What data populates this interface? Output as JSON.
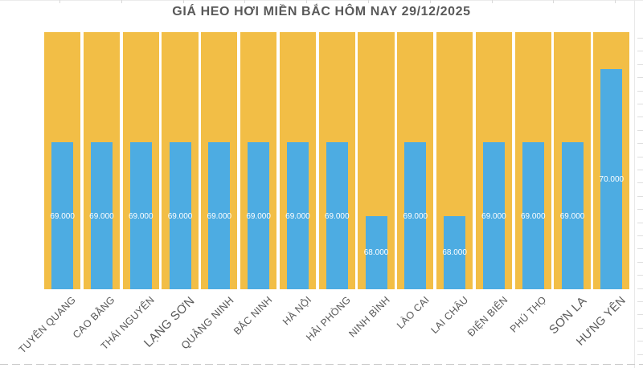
{
  "page": {
    "background": "#FFFFFF"
  },
  "chart_data": {
    "type": "bar",
    "title": "GIÁ HEO HƠI MIỀN BẮC HÔM NAY 29/12/2025",
    "categories": [
      "TUYÊN QUANG",
      "CAO BẰNG",
      "THÁI NGUYÊN",
      "LẠNG SƠN",
      "QUẢNG NINH",
      "BẮC NINH",
      "HÀ NỘI",
      "HẢI PHÒNG",
      "NINH BÌNH",
      "LÀO CAI",
      "LAI CHÂU",
      "ĐIỆN BIÊN",
      "PHÚ THỌ",
      "SƠN LA",
      "HƯNG YÊN"
    ],
    "values": [
      69000,
      69000,
      69000,
      69000,
      69000,
      69000,
      69000,
      69000,
      68000,
      69000,
      68000,
      69000,
      69000,
      69000,
      70000
    ],
    "value_labels": [
      "69.000",
      "69.000",
      "69.000",
      "69.000",
      "69.000",
      "69.000",
      "69.000",
      "69.000",
      "68.000",
      "69.000",
      "68.000",
      "69.000",
      "69.000",
      "69.000",
      "70.000"
    ],
    "xlabel": "",
    "ylabel": "",
    "ylim": [
      67000,
      70500
    ],
    "grid": false,
    "legend": "none",
    "value_label_position": "center-inside",
    "category_label_rotation_deg": 45,
    "category_label_scale": [
      1,
      1,
      1,
      1.22,
      1.05,
      1,
      1,
      1,
      1,
      1,
      1,
      1,
      1,
      1.22,
      1.15
    ],
    "background_columns_full_height": true,
    "colors": {
      "bar": "#4DACE2",
      "background_column": "#F2BE46",
      "value_label": "#FFFFFF",
      "text": "#595959"
    }
  }
}
